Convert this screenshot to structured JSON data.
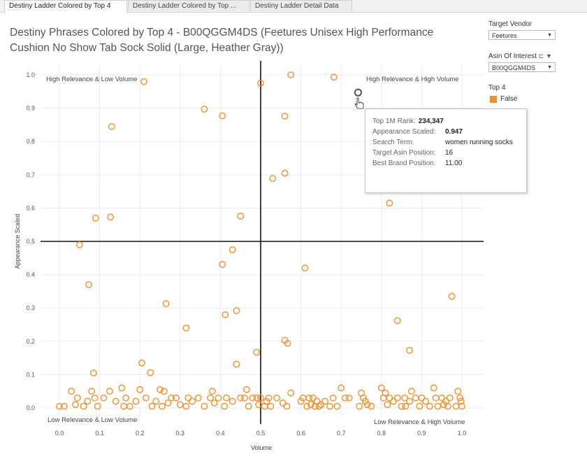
{
  "tabs": [
    {
      "label": "Destiny Ladder Colored by Top 4"
    },
    {
      "label": "Destiny Ladder Colored by Top ..."
    },
    {
      "label": "Destiny Ladder Detail Data"
    }
  ],
  "filters": {
    "target_vendor_label": "Target Vendor",
    "target_vendor_value": "Feetures",
    "asin_label": "Asin Of Interest",
    "asin_value": "B00QGGM4DS",
    "legend_title": "Top 4",
    "legend_item": "False"
  },
  "tooltip": {
    "rank_label": "Top 1M Rank:",
    "rank_value": "234,347",
    "appearance_label": "Appearance Scaled:",
    "appearance_value": "0.947",
    "search_label": "Search Term:",
    "search_value": "women running socks",
    "target_label": "Target Asin Position:",
    "target_value": "16",
    "brand_label": "Best Brand Position:",
    "brand_value": "11.00"
  },
  "colors": {
    "point": "#f28e2b",
    "highlight": "#555555",
    "grid": "#ececf6"
  },
  "chart_data": {
    "type": "scatter",
    "title_line1": "Destiny Phrases Colored by Top 4 - B00QGGM4DS (Feetures Unisex High Performance",
    "title_line2": "Cushion No Show Tab Sock Solid (Large, Heather Gray))",
    "xlabel": "Volume",
    "ylabel": "Appearance Scaled",
    "xlim": [
      -0.05,
      1.05
    ],
    "ylim": [
      -0.04,
      1.02
    ],
    "xticks": [
      "0.0",
      "0.1",
      "0.2",
      "0.3",
      "0.4",
      "0.5",
      "0.6",
      "0.7",
      "0.8",
      "0.9",
      "1.0"
    ],
    "yticks": [
      "0.0",
      "0.1",
      "0.2",
      "0.3",
      "0.4",
      "0.5",
      "0.6",
      "0.7",
      "0.8",
      "0.9",
      "1.0"
    ],
    "reference_lines": {
      "x": 0.5,
      "y": 0.5
    },
    "quadrant_labels": {
      "top_left": "High Relevance & Low Volume",
      "top_right": "High Relevance &  High Volume",
      "bottom_left": "Low Relevance & Low Volume",
      "bottom_right": "Low Relevance & High Volume"
    },
    "highlighted_point": {
      "x": 0.742,
      "y": 0.947
    },
    "points": [
      {
        "x": 0.575,
        "y": 1.0
      },
      {
        "x": 0.682,
        "y": 0.993
      },
      {
        "x": 0.21,
        "y": 0.98
      },
      {
        "x": 0.5,
        "y": 0.975
      },
      {
        "x": 0.36,
        "y": 0.897
      },
      {
        "x": 0.405,
        "y": 0.877
      },
      {
        "x": 0.56,
        "y": 0.876
      },
      {
        "x": 0.13,
        "y": 0.845
      },
      {
        "x": 0.56,
        "y": 0.705
      },
      {
        "x": 0.53,
        "y": 0.689
      },
      {
        "x": 0.82,
        "y": 0.615
      },
      {
        "x": 0.09,
        "y": 0.57
      },
      {
        "x": 0.127,
        "y": 0.573
      },
      {
        "x": 0.45,
        "y": 0.576
      },
      {
        "x": 0.05,
        "y": 0.49
      },
      {
        "x": 0.43,
        "y": 0.475
      },
      {
        "x": 0.405,
        "y": 0.431
      },
      {
        "x": 0.61,
        "y": 0.42
      },
      {
        "x": 0.073,
        "y": 0.37
      },
      {
        "x": 0.975,
        "y": 0.335
      },
      {
        "x": 0.265,
        "y": 0.313
      },
      {
        "x": 0.44,
        "y": 0.292
      },
      {
        "x": 0.412,
        "y": 0.28
      },
      {
        "x": 0.84,
        "y": 0.262
      },
      {
        "x": 0.315,
        "y": 0.24
      },
      {
        "x": 0.56,
        "y": 0.203
      },
      {
        "x": 0.567,
        "y": 0.194
      },
      {
        "x": 0.87,
        "y": 0.173
      },
      {
        "x": 0.49,
        "y": 0.167
      },
      {
        "x": 0.205,
        "y": 0.135
      },
      {
        "x": 0.44,
        "y": 0.131
      },
      {
        "x": 0.226,
        "y": 0.106
      },
      {
        "x": 0.085,
        "y": 0.105
      },
      {
        "x": 0.0,
        "y": 0.005
      },
      {
        "x": 0.012,
        "y": 0.005
      },
      {
        "x": 0.03,
        "y": 0.05
      },
      {
        "x": 0.04,
        "y": 0.01
      },
      {
        "x": 0.045,
        "y": 0.03
      },
      {
        "x": 0.06,
        "y": 0.005
      },
      {
        "x": 0.07,
        "y": 0.02
      },
      {
        "x": 0.08,
        "y": 0.05
      },
      {
        "x": 0.088,
        "y": 0.03
      },
      {
        "x": 0.095,
        "y": 0.005
      },
      {
        "x": 0.11,
        "y": 0.03
      },
      {
        "x": 0.125,
        "y": 0.05
      },
      {
        "x": 0.14,
        "y": 0.02
      },
      {
        "x": 0.155,
        "y": 0.06
      },
      {
        "x": 0.16,
        "y": 0.005
      },
      {
        "x": 0.165,
        "y": 0.03
      },
      {
        "x": 0.175,
        "y": 0.005
      },
      {
        "x": 0.19,
        "y": 0.02
      },
      {
        "x": 0.2,
        "y": 0.055
      },
      {
        "x": 0.215,
        "y": 0.03
      },
      {
        "x": 0.23,
        "y": 0.005
      },
      {
        "x": 0.24,
        "y": 0.02
      },
      {
        "x": 0.25,
        "y": 0.055
      },
      {
        "x": 0.255,
        "y": 0.005
      },
      {
        "x": 0.26,
        "y": 0.05
      },
      {
        "x": 0.27,
        "y": 0.015
      },
      {
        "x": 0.278,
        "y": 0.03
      },
      {
        "x": 0.29,
        "y": 0.03
      },
      {
        "x": 0.3,
        "y": 0.01
      },
      {
        "x": 0.315,
        "y": 0.005
      },
      {
        "x": 0.32,
        "y": 0.03
      },
      {
        "x": 0.33,
        "y": 0.02
      },
      {
        "x": 0.345,
        "y": 0.03
      },
      {
        "x": 0.36,
        "y": 0.005
      },
      {
        "x": 0.375,
        "y": 0.03
      },
      {
        "x": 0.38,
        "y": 0.05
      },
      {
        "x": 0.385,
        "y": 0.015
      },
      {
        "x": 0.395,
        "y": 0.03
      },
      {
        "x": 0.41,
        "y": 0.005
      },
      {
        "x": 0.415,
        "y": 0.03
      },
      {
        "x": 0.43,
        "y": 0.02
      },
      {
        "x": 0.45,
        "y": 0.03
      },
      {
        "x": 0.46,
        "y": 0.03
      },
      {
        "x": 0.465,
        "y": 0.055
      },
      {
        "x": 0.47,
        "y": 0.005
      },
      {
        "x": 0.48,
        "y": 0.03
      },
      {
        "x": 0.49,
        "y": 0.03
      },
      {
        "x": 0.495,
        "y": 0.01
      },
      {
        "x": 0.5,
        "y": 0.03
      },
      {
        "x": 0.51,
        "y": 0.005
      },
      {
        "x": 0.515,
        "y": 0.02
      },
      {
        "x": 0.52,
        "y": 0.03
      },
      {
        "x": 0.525,
        "y": 0.005
      },
      {
        "x": 0.54,
        "y": 0.03
      },
      {
        "x": 0.555,
        "y": 0.015
      },
      {
        "x": 0.565,
        "y": 0.005
      },
      {
        "x": 0.575,
        "y": 0.045
      },
      {
        "x": 0.6,
        "y": 0.02
      },
      {
        "x": 0.605,
        "y": 0.03
      },
      {
        "x": 0.615,
        "y": 0.005
      },
      {
        "x": 0.62,
        "y": 0.03
      },
      {
        "x": 0.625,
        "y": 0.01
      },
      {
        "x": 0.63,
        "y": 0.03
      },
      {
        "x": 0.635,
        "y": 0.005
      },
      {
        "x": 0.64,
        "y": 0.02
      },
      {
        "x": 0.645,
        "y": 0.005
      },
      {
        "x": 0.65,
        "y": 0.01
      },
      {
        "x": 0.66,
        "y": 0.02
      },
      {
        "x": 0.672,
        "y": 0.005
      },
      {
        "x": 0.68,
        "y": 0.03
      },
      {
        "x": 0.69,
        "y": 0.005
      },
      {
        "x": 0.7,
        "y": 0.06
      },
      {
        "x": 0.71,
        "y": 0.03
      },
      {
        "x": 0.72,
        "y": 0.03
      },
      {
        "x": 0.745,
        "y": 0.005
      },
      {
        "x": 0.75,
        "y": 0.045
      },
      {
        "x": 0.755,
        "y": 0.03
      },
      {
        "x": 0.76,
        "y": 0.02
      },
      {
        "x": 0.765,
        "y": 0.01
      },
      {
        "x": 0.775,
        "y": 0.005
      },
      {
        "x": 0.8,
        "y": 0.06
      },
      {
        "x": 0.805,
        "y": 0.03
      },
      {
        "x": 0.81,
        "y": 0.045
      },
      {
        "x": 0.815,
        "y": 0.01
      },
      {
        "x": 0.82,
        "y": 0.03
      },
      {
        "x": 0.83,
        "y": 0.02
      },
      {
        "x": 0.84,
        "y": 0.03
      },
      {
        "x": 0.85,
        "y": 0.005
      },
      {
        "x": 0.858,
        "y": 0.03
      },
      {
        "x": 0.86,
        "y": 0.005
      },
      {
        "x": 0.87,
        "y": 0.02
      },
      {
        "x": 0.875,
        "y": 0.05
      },
      {
        "x": 0.885,
        "y": 0.03
      },
      {
        "x": 0.895,
        "y": 0.005
      },
      {
        "x": 0.9,
        "y": 0.03
      },
      {
        "x": 0.91,
        "y": 0.02
      },
      {
        "x": 0.92,
        "y": 0.005
      },
      {
        "x": 0.93,
        "y": 0.06
      },
      {
        "x": 0.935,
        "y": 0.03
      },
      {
        "x": 0.94,
        "y": 0.005
      },
      {
        "x": 0.95,
        "y": 0.03
      },
      {
        "x": 0.955,
        "y": 0.01
      },
      {
        "x": 0.96,
        "y": 0.02
      },
      {
        "x": 0.965,
        "y": 0.005
      },
      {
        "x": 0.97,
        "y": 0.03
      },
      {
        "x": 0.985,
        "y": 0.005
      },
      {
        "x": 0.99,
        "y": 0.05
      },
      {
        "x": 0.995,
        "y": 0.03
      },
      {
        "x": 1.0,
        "y": 0.005
      },
      {
        "x": 0.998,
        "y": 0.02
      }
    ]
  }
}
